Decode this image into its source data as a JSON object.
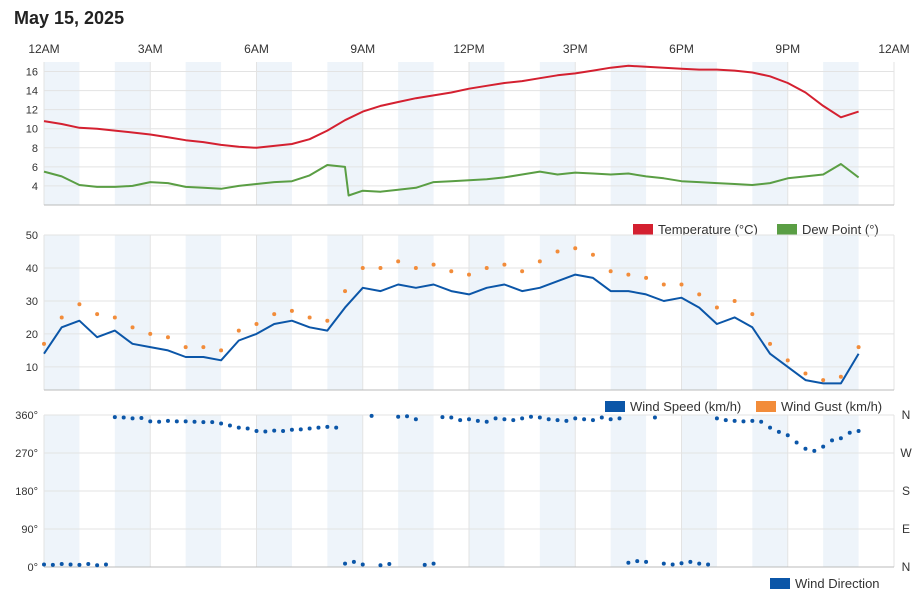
{
  "page": {
    "title": "May 15, 2025"
  },
  "colors": {
    "temperature": "#d42030",
    "dew_point": "#5a9e44",
    "wind_speed": "#0b56a8",
    "wind_gust": "#f28c3a",
    "wind_direction": "#0b56a8",
    "band": "#eef4fa",
    "grid": "#e3e3e3"
  },
  "time_axis": {
    "labels": [
      "12AM",
      "3AM",
      "6AM",
      "9AM",
      "12PM",
      "3PM",
      "6PM",
      "9PM",
      "12AM"
    ],
    "range_hours": [
      0,
      24
    ]
  },
  "chart_data": [
    {
      "type": "line",
      "x_unit": "hour of day",
      "ylim": [
        2,
        17
      ],
      "yticks": [
        4,
        6,
        8,
        10,
        12,
        14,
        16
      ],
      "legend_position": "bottom-right",
      "series": [
        {
          "name": "Temperature (°C)",
          "x": [
            0,
            0.5,
            1,
            1.5,
            2,
            2.5,
            3,
            3.5,
            4,
            4.5,
            5,
            5.5,
            6,
            6.5,
            7,
            7.5,
            8,
            8.5,
            9,
            9.5,
            10,
            10.5,
            11,
            11.5,
            12,
            12.5,
            13,
            13.5,
            14,
            14.5,
            15,
            15.5,
            16,
            16.5,
            17,
            17.5,
            18,
            18.5,
            19,
            19.5,
            20,
            20.5,
            21,
            21.5,
            22,
            22.5,
            23
          ],
          "values": [
            10.8,
            10.5,
            10.1,
            10.0,
            9.8,
            9.6,
            9.4,
            9.1,
            8.8,
            8.6,
            8.3,
            8.1,
            8.0,
            8.2,
            8.4,
            8.9,
            9.8,
            10.9,
            11.8,
            12.4,
            12.8,
            13.2,
            13.5,
            13.8,
            14.2,
            14.5,
            14.8,
            15.0,
            15.3,
            15.6,
            15.8,
            16.1,
            16.4,
            16.6,
            16.5,
            16.4,
            16.3,
            16.2,
            16.2,
            16.1,
            15.9,
            15.5,
            14.8,
            13.8,
            12.4,
            11.2,
            11.8
          ]
        },
        {
          "name": "Dew Point (°)",
          "x": [
            0,
            0.5,
            1,
            1.5,
            2,
            2.5,
            3,
            3.5,
            4,
            4.5,
            5,
            5.5,
            6,
            6.5,
            7,
            7.5,
            8,
            8.5,
            8.6,
            9,
            9.5,
            10,
            10.5,
            11,
            11.5,
            12,
            12.5,
            13,
            13.5,
            14,
            14.5,
            15,
            15.5,
            16,
            16.5,
            17,
            17.5,
            18,
            18.5,
            19,
            19.5,
            20,
            20.5,
            21,
            21.5,
            22,
            22.5,
            23
          ],
          "values": [
            5.5,
            5.0,
            4.1,
            3.9,
            3.9,
            4.0,
            4.4,
            4.3,
            3.9,
            3.8,
            3.7,
            4.0,
            4.2,
            4.4,
            4.5,
            5.1,
            6.2,
            6.0,
            3.0,
            3.5,
            3.4,
            3.6,
            3.8,
            4.4,
            4.5,
            4.6,
            4.7,
            4.9,
            5.2,
            5.5,
            5.2,
            5.4,
            5.3,
            5.2,
            5.3,
            5.0,
            4.8,
            4.5,
            4.4,
            4.3,
            4.2,
            4.1,
            4.3,
            4.8,
            5.0,
            5.2,
            6.3,
            4.9
          ]
        }
      ]
    },
    {
      "type": "line",
      "x_unit": "hour of day",
      "ylim": [
        3,
        50
      ],
      "yticks": [
        10,
        20,
        30,
        40,
        50
      ],
      "legend_position": "bottom-right",
      "series": [
        {
          "name": "Wind Speed (km/h)",
          "x": [
            0,
            0.5,
            1,
            1.5,
            2,
            2.5,
            3,
            3.5,
            4,
            4.5,
            5,
            5.5,
            6,
            6.5,
            7,
            7.5,
            8,
            8.5,
            9,
            9.5,
            10,
            10.5,
            11,
            11.5,
            12,
            12.5,
            13,
            13.5,
            14,
            14.5,
            15,
            15.5,
            16,
            16.5,
            17,
            17.5,
            18,
            18.5,
            19,
            19.5,
            20,
            20.5,
            21,
            21.5,
            22,
            22.5,
            23
          ],
          "values": [
            14,
            22,
            24,
            19,
            21,
            17,
            16,
            15,
            13,
            13,
            12,
            18,
            20,
            23,
            24,
            22,
            21,
            28,
            34,
            33,
            35,
            34,
            35,
            33,
            32,
            34,
            35,
            33,
            34,
            36,
            38,
            37,
            33,
            33,
            32,
            30,
            31,
            28,
            23,
            25,
            22,
            14,
            10,
            6,
            5,
            5,
            14
          ]
        },
        {
          "name": "Wind Gust (km/h)",
          "x": [
            0,
            0.5,
            1,
            1.5,
            2,
            2.5,
            3,
            3.5,
            4,
            4.5,
            5,
            5.5,
            6,
            6.5,
            7,
            7.5,
            8,
            8.5,
            9,
            9.5,
            10,
            10.5,
            11,
            11.5,
            12,
            12.5,
            13,
            13.5,
            14,
            14.5,
            15,
            15.5,
            16,
            16.5,
            17,
            17.5,
            18,
            18.5,
            19,
            19.5,
            20,
            20.5,
            21,
            21.5,
            22,
            22.5,
            23
          ],
          "values": [
            17,
            25,
            29,
            26,
            25,
            22,
            20,
            19,
            16,
            16,
            15,
            21,
            23,
            26,
            27,
            25,
            24,
            33,
            40,
            40,
            42,
            40,
            41,
            39,
            38,
            40,
            41,
            39,
            42,
            45,
            46,
            44,
            39,
            38,
            37,
            35,
            35,
            32,
            28,
            30,
            26,
            17,
            12,
            8,
            6,
            7,
            16
          ]
        }
      ]
    },
    {
      "type": "scatter",
      "x_unit": "hour of day",
      "ylim": [
        0,
        360
      ],
      "yticks": [
        0,
        90,
        180,
        270,
        360
      ],
      "ytick_labels": [
        "0°",
        "90°",
        "180°",
        "270°",
        "360°"
      ],
      "right_labels": [
        "N",
        "E",
        "S",
        "W",
        "N"
      ],
      "legend_position": "bottom-right",
      "series": [
        {
          "name": "Wind Direction",
          "x": [
            0,
            0.25,
            0.5,
            0.75,
            1,
            1.25,
            1.5,
            1.75,
            2,
            2.25,
            2.5,
            2.75,
            3,
            3.25,
            3.5,
            3.75,
            4,
            4.25,
            4.5,
            4.75,
            5,
            5.25,
            5.5,
            5.75,
            6,
            6.25,
            6.5,
            6.75,
            7,
            7.25,
            7.5,
            7.75,
            8,
            8.25,
            8.5,
            8.75,
            9,
            9.25,
            9.5,
            9.75,
            10,
            10.25,
            10.5,
            10.75,
            11,
            11.25,
            11.5,
            11.75,
            12,
            12.25,
            12.5,
            12.75,
            13,
            13.25,
            13.5,
            13.75,
            14,
            14.25,
            14.5,
            14.75,
            15,
            15.25,
            15.5,
            15.75,
            16,
            16.25,
            16.5,
            16.75,
            17,
            17.25,
            17.5,
            17.75,
            18,
            18.25,
            18.5,
            18.75,
            19,
            19.25,
            19.5,
            19.75,
            20,
            20.25,
            20.5,
            20.75,
            21,
            21.25,
            21.5,
            21.75,
            22,
            22.25,
            22.5,
            22.75,
            23
          ],
          "values": [
            6,
            5,
            7,
            6,
            5,
            7,
            4,
            6,
            355,
            354,
            352,
            353,
            345,
            344,
            346,
            345,
            345,
            344,
            343,
            343,
            340,
            335,
            330,
            328,
            322,
            321,
            323,
            322,
            325,
            326,
            328,
            330,
            332,
            330,
            8,
            12,
            6,
            358,
            4,
            7,
            356,
            357,
            350,
            5,
            8,
            355,
            354,
            348,
            350,
            346,
            344,
            352,
            350,
            348,
            352,
            356,
            354,
            350,
            348,
            346,
            352,
            350,
            348,
            354,
            350,
            352,
            10,
            14,
            12,
            354,
            8,
            6,
            9,
            12,
            8,
            6,
            352,
            348,
            346,
            345,
            346,
            344,
            330,
            320,
            312,
            295,
            280,
            275,
            285,
            300,
            305,
            318,
            322
          ]
        }
      ]
    }
  ]
}
